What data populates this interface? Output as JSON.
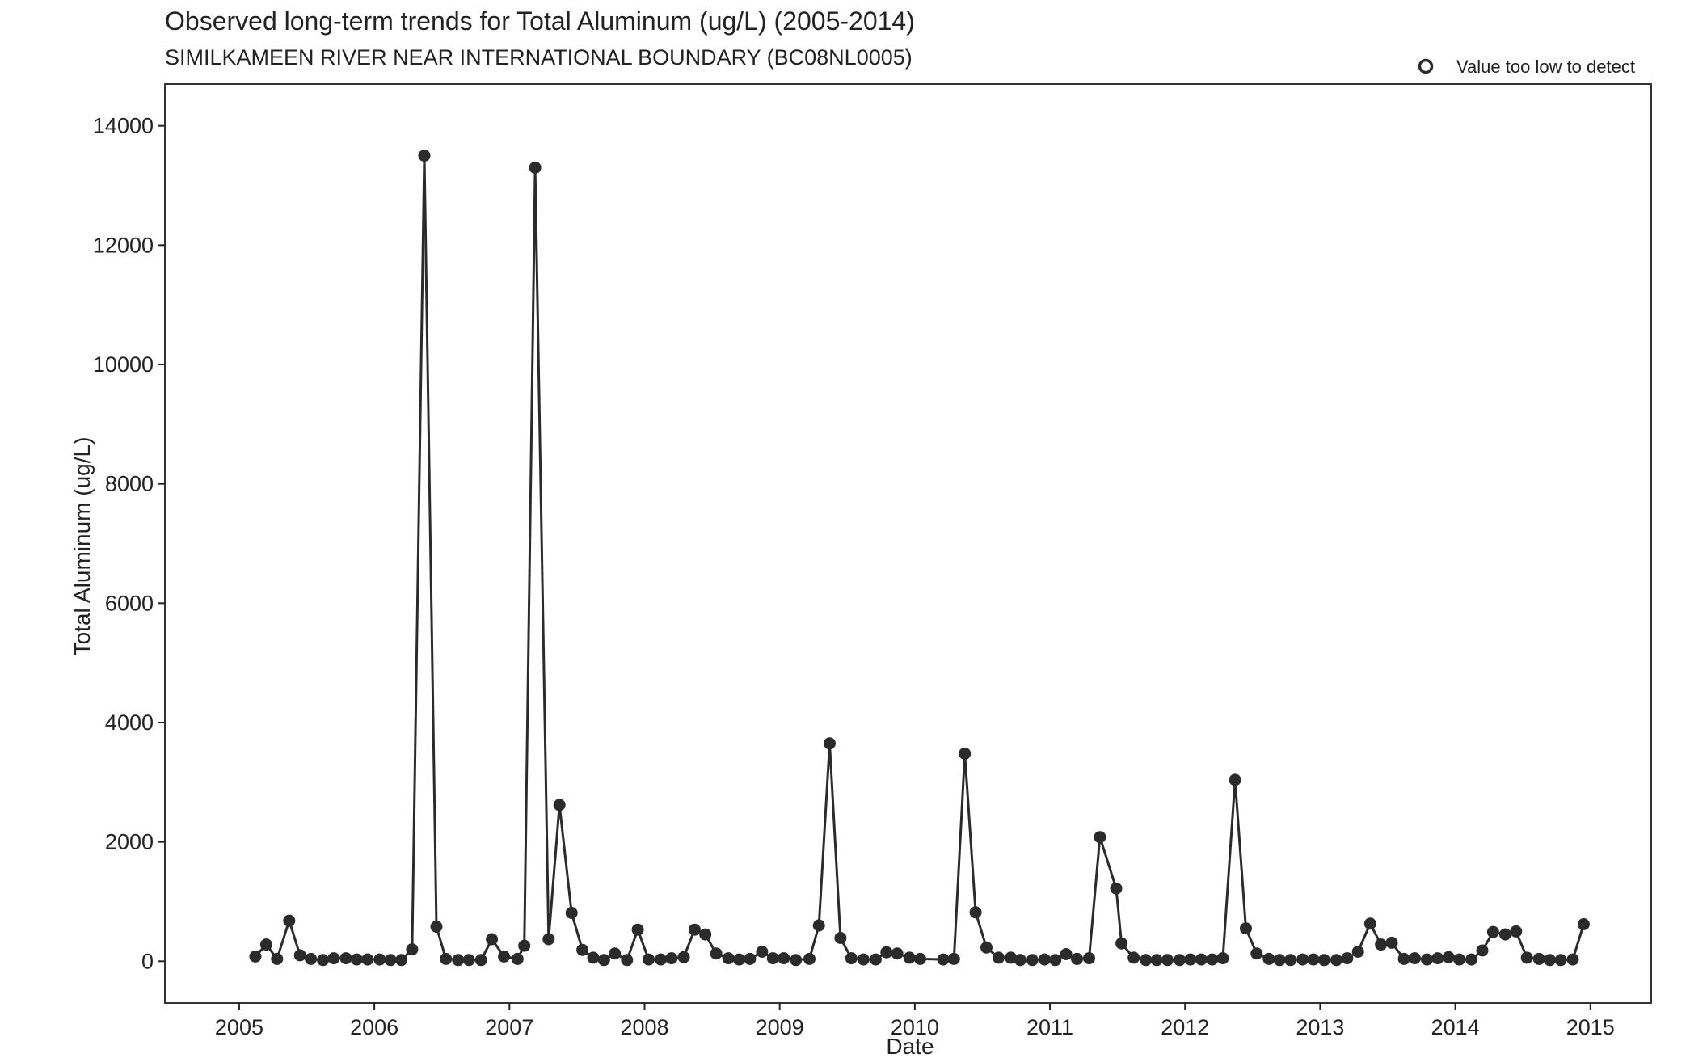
{
  "chart_data": {
    "type": "line",
    "title": "Observed long-term trends for Total Aluminum (ug/L) (2005-2014)",
    "subtitle": "SIMILKAMEEN RIVER NEAR INTERNATIONAL BOUNDARY (BC08NL0005)",
    "xlabel": "Date",
    "ylabel": "Total Aluminum (ug/L)",
    "xlim": [
      2004.45,
      2015.45
    ],
    "ylim": [
      -700,
      14700
    ],
    "x_ticks": [
      2005,
      2006,
      2007,
      2008,
      2009,
      2010,
      2011,
      2012,
      2013,
      2014,
      2015
    ],
    "x_tick_labels": [
      "2005",
      "2006",
      "2007",
      "2008",
      "2009",
      "2010",
      "2011",
      "2012",
      "2013",
      "2014",
      "2015"
    ],
    "y_ticks": [
      0,
      2000,
      4000,
      6000,
      8000,
      10000,
      12000,
      14000
    ],
    "y_tick_labels": [
      "0",
      "2000",
      "4000",
      "6000",
      "8000",
      "10000",
      "12000",
      "14000"
    ],
    "grid": false,
    "legend": {
      "placement": "top-right",
      "entries": [
        "Value too low to detect"
      ]
    },
    "colors": {
      "series": "#2b2b2b",
      "axis": "#222222"
    },
    "series": [
      {
        "x": [
          2005.12,
          2005.2,
          2005.28,
          2005.37,
          2005.45,
          2005.53,
          2005.62,
          2005.7,
          2005.79,
          2005.87,
          2005.95,
          2006.04,
          2006.12,
          2006.2,
          2006.28,
          2006.37,
          2006.46,
          2006.53,
          2006.62,
          2006.7,
          2006.79,
          2006.87,
          2006.96,
          2007.06,
          2007.11,
          2007.19,
          2007.29,
          2007.37,
          2007.46,
          2007.54,
          2007.62,
          2007.7,
          2007.78,
          2007.87,
          2007.95,
          2008.03,
          2008.12,
          2008.2,
          2008.29,
          2008.37,
          2008.45,
          2008.53,
          2008.62,
          2008.7,
          2008.78,
          2008.87,
          2008.95,
          2009.03,
          2009.12,
          2009.22,
          2009.29,
          2009.37,
          2009.45,
          2009.53,
          2009.62,
          2009.71,
          2009.79,
          2009.87,
          2009.96,
          2010.04,
          2010.21,
          2010.29,
          2010.37,
          2010.45,
          2010.53,
          2010.62,
          2010.71,
          2010.78,
          2010.87,
          2010.96,
          2011.04,
          2011.12,
          2011.2,
          2011.29,
          2011.37,
          2011.49,
          2011.53,
          2011.62,
          2011.71,
          2011.79,
          2011.87,
          2011.96,
          2012.04,
          2012.12,
          2012.2,
          2012.28,
          2012.37,
          2012.45,
          2012.53,
          2012.62,
          2012.7,
          2012.78,
          2012.87,
          2012.95,
          2013.03,
          2013.12,
          2013.2,
          2013.28,
          2013.37,
          2013.45,
          2013.53,
          2013.62,
          2013.7,
          2013.79,
          2013.87,
          2013.95,
          2014.03,
          2014.12,
          2014.2,
          2014.28,
          2014.37,
          2014.45,
          2014.53,
          2014.62,
          2014.7,
          2014.78,
          2014.87,
          2014.95
        ],
        "y": [
          80,
          280,
          40,
          680,
          100,
          40,
          20,
          50,
          50,
          30,
          30,
          30,
          20,
          20,
          200,
          13500,
          580,
          40,
          20,
          20,
          20,
          370,
          80,
          40,
          260,
          13300,
          370,
          2620,
          810,
          190,
          60,
          20,
          130,
          20,
          530,
          30,
          30,
          50,
          70,
          530,
          450,
          130,
          50,
          30,
          40,
          160,
          50,
          50,
          20,
          40,
          600,
          3650,
          390,
          50,
          30,
          30,
          150,
          130,
          60,
          40,
          30,
          40,
          3480,
          820,
          230,
          60,
          60,
          20,
          20,
          30,
          20,
          120,
          40,
          50,
          2080,
          1220,
          300,
          60,
          20,
          20,
          20,
          20,
          30,
          30,
          30,
          50,
          3040,
          550,
          130,
          40,
          20,
          20,
          30,
          30,
          20,
          20,
          50,
          160,
          630,
          280,
          310,
          40,
          50,
          30,
          50,
          70,
          30,
          30,
          180,
          490,
          450,
          500,
          60,
          40,
          20,
          20,
          30,
          620
        ]
      }
    ]
  }
}
